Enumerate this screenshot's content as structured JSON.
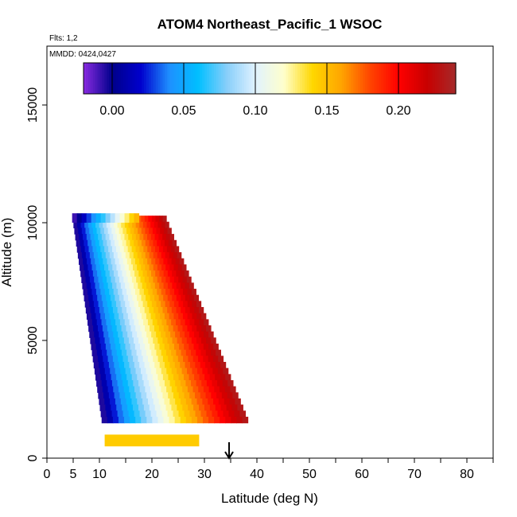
{
  "chart_data": {
    "type": "heatmap",
    "title": "ATOM4 Northeast_Pacific_1 WSOC",
    "flights_label": "Flts: 1,2",
    "date_label": "MMDD: 0424,0427",
    "xlabel": "Latitude (deg N)",
    "ylabel": "Altitude (m)",
    "xlim": [
      0,
      85
    ],
    "ylim": [
      0,
      17500
    ],
    "x_ticks": [
      0,
      5,
      10,
      20,
      30,
      40,
      50,
      60,
      70,
      80
    ],
    "x_tick_labels": [
      "0",
      "5",
      "10",
      "20",
      "30",
      "40",
      "50",
      "60",
      "70",
      "80"
    ],
    "x_minor_ticks": [
      15,
      25,
      35,
      45,
      55,
      65,
      75,
      85
    ],
    "y_ticks": [
      0,
      5000,
      10000,
      15000
    ],
    "y_tick_labels": [
      "0",
      "5000",
      "10000",
      "15000"
    ],
    "colorbar": {
      "vmin": -0.02,
      "vmax": 0.24,
      "ticks": [
        0.0,
        0.05,
        0.1,
        0.15,
        0.2
      ],
      "tick_labels": [
        "0.00",
        "0.05",
        "0.10",
        "0.15",
        "0.20"
      ],
      "colors": [
        "#8a2be2",
        "#00008b",
        "#0000cd",
        "#1e90ff",
        "#00bfff",
        "#87cefa",
        "#e0f2ff",
        "#ffffcc",
        "#ffd700",
        "#ffa500",
        "#ff4500",
        "#ff0000",
        "#c80000",
        "#a52a2a"
      ]
    },
    "profile": {
      "lat_top_left": 4.8,
      "lat_top_right": 22.5,
      "lat_bottom_left": 10.5,
      "lat_bottom_right": 38.5,
      "alt_top": 10300,
      "alt_bottom": 1500,
      "value_left": -0.015,
      "value_right": 0.235,
      "top_band": {
        "alt_range": [
          10000,
          10400
        ],
        "lat_range": [
          4.8,
          17.5
        ]
      },
      "bottom_band": {
        "alt_range": [
          500,
          1000
        ],
        "lat_range": [
          11,
          29
        ],
        "value": 0.145
      }
    },
    "marker": {
      "type": "arrow-down",
      "lat": 34.7
    }
  }
}
